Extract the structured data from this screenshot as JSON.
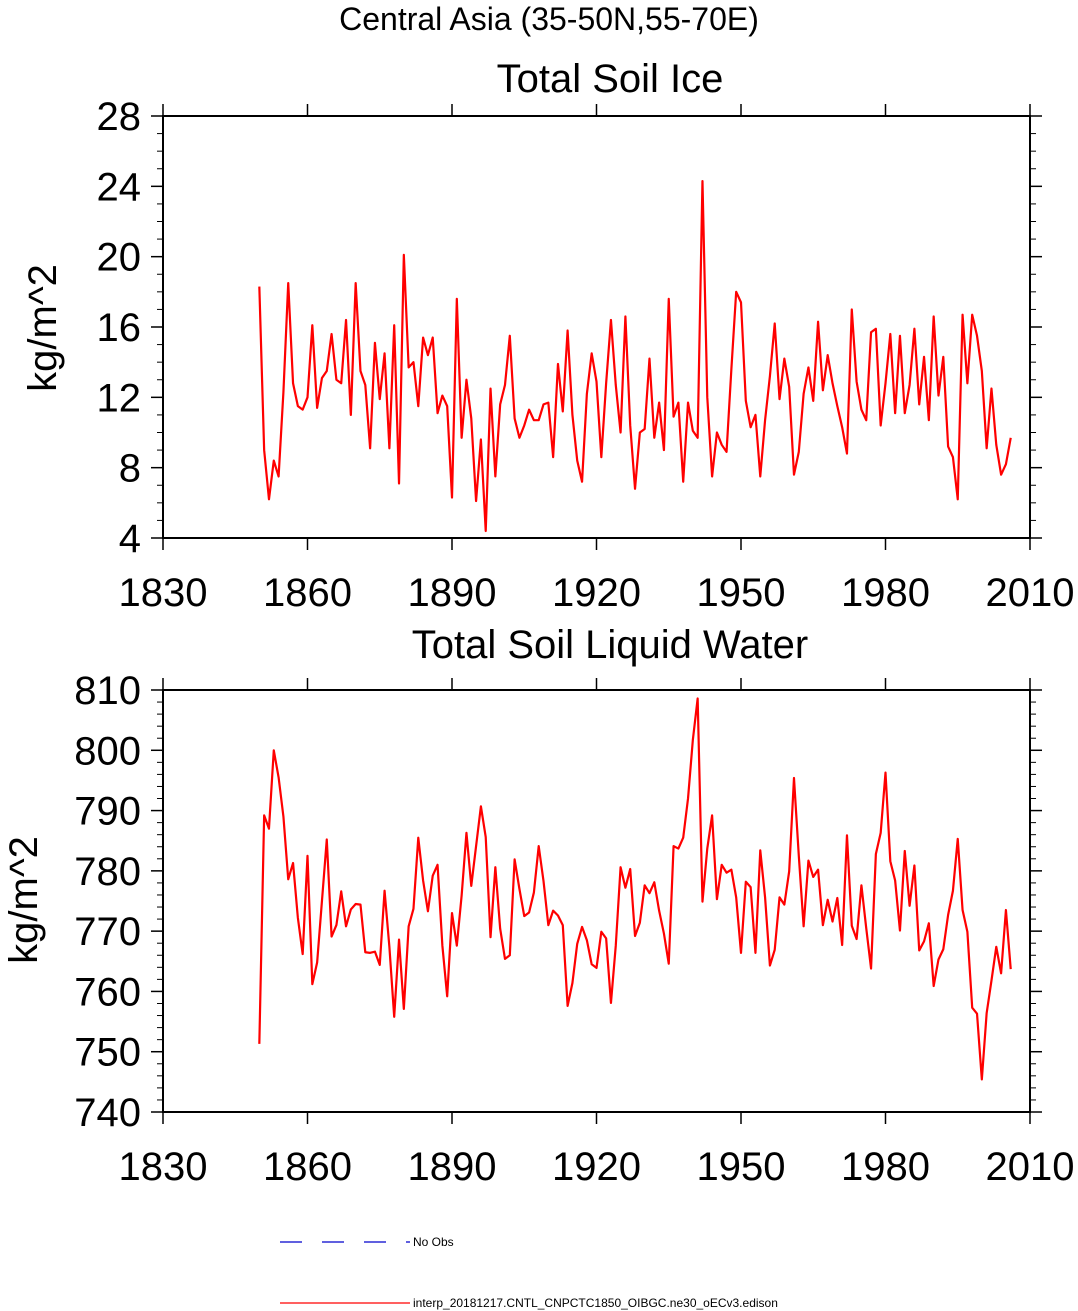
{
  "figure_title": "Central Asia (35-50N,55-70E)",
  "legend": {
    "entries": [
      {
        "label": "No Obs",
        "color": "#0000cc",
        "style": "dashed"
      },
      {
        "label": "interp_20181217.CNTL_CNPCTC1850_OIBGC.ne30_oECv3.edison",
        "color": "#ff0000",
        "style": "solid"
      }
    ]
  },
  "chart_data": [
    {
      "type": "line",
      "title": "Total Soil Ice",
      "xlabel": "",
      "ylabel": "kg/m^2",
      "xlim": [
        1830,
        2010
      ],
      "ylim": [
        4,
        28
      ],
      "xticks": [
        1830,
        1860,
        1890,
        1920,
        1950,
        1980,
        2010
      ],
      "yticks": [
        4,
        8,
        12,
        16,
        20,
        24,
        28
      ],
      "series": [
        {
          "name": "interp_20181217.CNTL_CNPCTC1850_OIBGC.ne30_oECv3.edison",
          "color": "#ff0000",
          "x_start": 1850,
          "x_step": 1,
          "values": [
            18.3,
            9.0,
            6.2,
            8.4,
            7.5,
            12.3,
            18.5,
            12.8,
            11.5,
            11.3,
            12.0,
            16.1,
            11.4,
            13.1,
            13.5,
            15.6,
            13.0,
            12.8,
            16.4,
            11.0,
            18.5,
            13.5,
            12.7,
            9.1,
            15.1,
            11.9,
            14.5,
            9.1,
            16.1,
            7.1,
            20.1,
            13.7,
            14.0,
            11.5,
            15.4,
            14.4,
            15.4,
            11.1,
            12.1,
            11.5,
            6.3,
            17.6,
            9.7,
            13.0,
            10.8,
            6.1,
            9.6,
            4.4,
            12.5,
            7.5,
            11.6,
            12.7,
            15.5,
            10.8,
            9.7,
            10.4,
            11.3,
            10.7,
            10.7,
            11.6,
            11.7,
            8.6,
            13.9,
            11.2,
            15.8,
            11.0,
            8.4,
            7.2,
            12.2,
            14.5,
            12.9,
            8.6,
            12.8,
            16.4,
            12.7,
            10.0,
            16.6,
            10.4,
            6.8,
            10.0,
            10.2,
            14.2,
            9.7,
            11.7,
            9.0,
            17.6,
            10.9,
            11.7,
            7.2,
            11.7,
            10.1,
            9.7,
            24.3,
            12.0,
            7.5,
            10.0,
            9.3,
            8.9,
            13.6,
            18.0,
            17.4,
            11.8,
            10.3,
            11.0,
            7.5,
            10.7,
            13.2,
            16.2,
            11.9,
            14.2,
            12.6,
            7.6,
            8.9,
            12.2,
            13.7,
            11.8,
            16.3,
            12.4,
            14.4,
            12.8,
            11.5,
            10.3,
            8.8,
            17.0,
            12.9,
            11.3,
            10.7,
            15.7,
            15.9,
            10.4,
            12.8,
            15.6,
            11.1,
            15.5,
            11.1,
            12.7,
            15.9,
            11.6,
            14.3,
            10.7,
            16.6,
            12.1,
            14.3,
            9.2,
            8.6,
            6.2,
            16.7,
            12.8,
            16.7,
            15.5,
            13.5,
            9.1,
            12.5,
            9.3,
            7.6,
            8.2,
            9.7
          ]
        }
      ]
    },
    {
      "type": "line",
      "title": "Total Soil Liquid Water",
      "xlabel": "",
      "ylabel": "kg/m^2",
      "xlim": [
        1830,
        2010
      ],
      "ylim": [
        740,
        810
      ],
      "xticks": [
        1830,
        1860,
        1890,
        1920,
        1950,
        1980,
        2010
      ],
      "yticks": [
        740,
        750,
        760,
        770,
        780,
        790,
        800,
        810
      ],
      "series": [
        {
          "name": "interp_20181217.CNTL_CNPCTC1850_OIBGC.ne30_oECv3.edison",
          "color": "#ff0000",
          "x_start": 1850,
          "x_step": 1,
          "values": [
            751.3,
            789.2,
            787.0,
            800.0,
            795.5,
            789.0,
            778.6,
            781.3,
            772.2,
            766.2,
            782.5,
            761.2,
            764.8,
            775.0,
            785.2,
            769.1,
            771.0,
            776.6,
            770.8,
            773.6,
            774.5,
            774.4,
            766.5,
            766.4,
            766.6,
            764.4,
            776.7,
            767.4,
            755.8,
            768.6,
            757.1,
            770.8,
            773.7,
            785.5,
            778.4,
            773.3,
            779.2,
            781.0,
            767.6,
            759.2,
            773.0,
            767.6,
            775.9,
            786.3,
            777.5,
            784.1,
            790.7,
            785.6,
            769.0,
            780.6,
            770.4,
            765.4,
            766.0,
            781.9,
            777.0,
            772.5,
            773.1,
            776.4,
            784.1,
            778.3,
            771.0,
            773.4,
            772.6,
            771.0,
            757.6,
            761.4,
            767.9,
            770.7,
            768.5,
            764.5,
            763.9,
            769.9,
            768.8,
            758.1,
            767.6,
            780.6,
            777.2,
            780.3,
            769.2,
            771.4,
            777.6,
            776.3,
            778.1,
            773.4,
            769.6,
            764.6,
            784.1,
            783.7,
            785.5,
            792.0,
            801.7,
            808.6,
            774.9,
            783.7,
            789.2,
            775.3,
            781.0,
            779.7,
            780.2,
            775.6,
            766.4,
            778.2,
            777.3,
            766.4,
            783.4,
            775.6,
            764.3,
            766.9,
            775.6,
            774.4,
            779.9,
            795.4,
            782.5,
            770.8,
            781.7,
            779.0,
            780.2,
            771.0,
            775.2,
            771.6,
            775.5,
            767.7,
            785.9,
            770.9,
            768.7,
            777.6,
            770.5,
            763.8,
            782.8,
            786.3,
            796.3,
            781.6,
            778.4,
            770.1,
            783.3,
            774.2,
            780.9,
            766.8,
            768.3,
            771.3,
            760.9,
            765.3,
            767.0,
            772.7,
            776.7,
            785.3,
            773.5,
            769.9,
            757.3,
            756.3,
            745.4,
            756.4,
            761.8,
            767.4,
            763.0,
            773.5,
            763.7
          ]
        }
      ]
    }
  ]
}
